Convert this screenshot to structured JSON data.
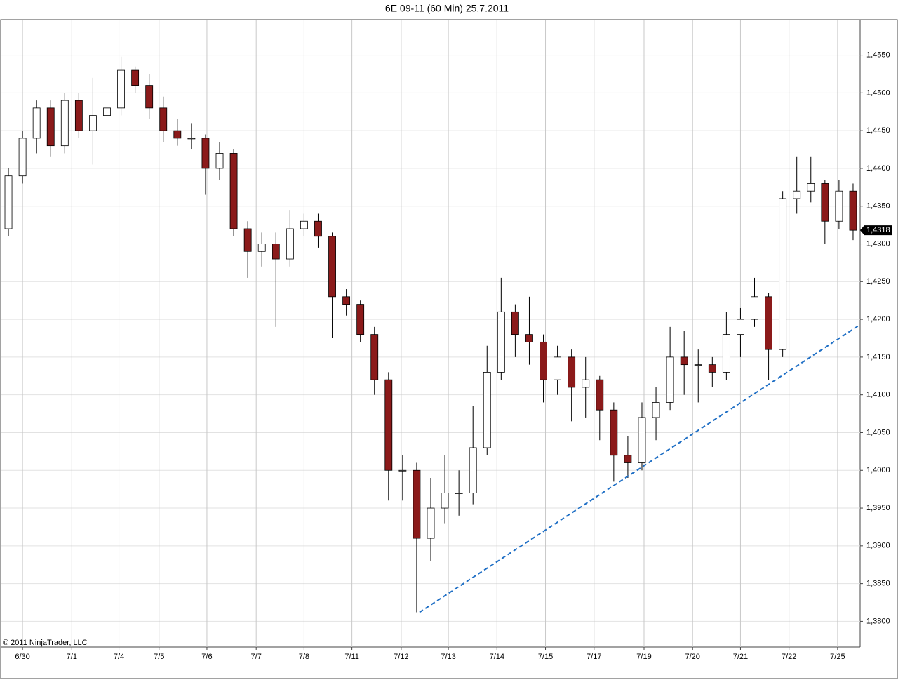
{
  "chart_data": {
    "type": "candlestick",
    "title": "6E 09-11 (60 Min)  25.7.2011",
    "copyright": "© 2011 NinjaTrader, LLC",
    "xlim": [
      0,
      122
    ],
    "xticks": [
      {
        "value": 3,
        "label": "6/30"
      },
      {
        "value": 10,
        "label": "7/1"
      },
      {
        "value": 16.7,
        "label": "7/4"
      },
      {
        "value": 22.4,
        "label": "7/5"
      },
      {
        "value": 29.2,
        "label": "7/6"
      },
      {
        "value": 36.2,
        "label": "7/7"
      },
      {
        "value": 43,
        "label": "7/8"
      },
      {
        "value": 49.8,
        "label": "7/11"
      },
      {
        "value": 56.8,
        "label": "7/12"
      },
      {
        "value": 63.5,
        "label": "7/13"
      },
      {
        "value": 70.4,
        "label": "7/14"
      },
      {
        "value": 77.3,
        "label": "7/15"
      },
      {
        "value": 84.2,
        "label": "7/17"
      },
      {
        "value": 91.3,
        "label": "7/19"
      },
      {
        "value": 98.2,
        "label": "7/20"
      },
      {
        "value": 105,
        "label": "7/21"
      },
      {
        "value": 111.9,
        "label": "7/22"
      },
      {
        "value": 118.8,
        "label": "7/25"
      }
    ],
    "ylim": [
      1.3766,
      1.4597
    ],
    "yticks": [
      {
        "value": 1.38,
        "label": "1,3800"
      },
      {
        "value": 1.385,
        "label": "1,3850"
      },
      {
        "value": 1.39,
        "label": "1,3900"
      },
      {
        "value": 1.395,
        "label": "1,3950"
      },
      {
        "value": 1.4,
        "label": "1,4000"
      },
      {
        "value": 1.405,
        "label": "1,4050"
      },
      {
        "value": 1.41,
        "label": "1,4100"
      },
      {
        "value": 1.415,
        "label": "1,4150"
      },
      {
        "value": 1.42,
        "label": "1,4200"
      },
      {
        "value": 1.425,
        "label": "1,4250"
      },
      {
        "value": 1.43,
        "label": "1,4300"
      },
      {
        "value": 1.435,
        "label": "1,4350"
      },
      {
        "value": 1.44,
        "label": "1,4400"
      },
      {
        "value": 1.445,
        "label": "1,4450"
      },
      {
        "value": 1.45,
        "label": "1,4500"
      },
      {
        "value": 1.455,
        "label": "1,4550"
      }
    ],
    "grid": true,
    "up_color": "#ffffff",
    "down_color": "#8b1a1a",
    "x": [
      1,
      3,
      5,
      7,
      9,
      11,
      13,
      15,
      17,
      19,
      21,
      23,
      25,
      27,
      29,
      31,
      33,
      35,
      37,
      39,
      41,
      43,
      45,
      47,
      49,
      51,
      53,
      55,
      57,
      59,
      61,
      63,
      65,
      67,
      69,
      71,
      73,
      75,
      77,
      79,
      81,
      83,
      85,
      87,
      89,
      91,
      93,
      95,
      97,
      99,
      101,
      103,
      105,
      107,
      109,
      111,
      113,
      115,
      117,
      119,
      121
    ],
    "open": [
      1.432,
      1.439,
      1.444,
      1.448,
      1.443,
      1.449,
      1.445,
      1.447,
      1.448,
      1.453,
      1.451,
      1.448,
      1.445,
      1.444,
      1.444,
      1.44,
      1.442,
      1.432,
      1.429,
      1.43,
      1.428,
      1.432,
      1.433,
      1.431,
      1.423,
      1.422,
      1.418,
      1.412,
      1.4,
      1.4,
      1.391,
      1.395,
      1.397,
      1.397,
      1.403,
      1.413,
      1.421,
      1.418,
      1.417,
      1.412,
      1.415,
      1.411,
      1.412,
      1.408,
      1.402,
      1.401,
      1.407,
      1.409,
      1.415,
      1.414,
      1.414,
      1.413,
      1.418,
      1.42,
      1.423,
      1.416,
      1.436,
      1.437,
      1.438,
      1.433,
      1.437
    ],
    "high": [
      1.44,
      1.445,
      1.449,
      1.449,
      1.45,
      1.45,
      1.452,
      1.45,
      1.4548,
      1.4535,
      1.4525,
      1.4495,
      1.4465,
      1.446,
      1.4445,
      1.4435,
      1.4425,
      1.433,
      1.4315,
      1.4315,
      1.4345,
      1.434,
      1.434,
      1.4315,
      1.424,
      1.4225,
      1.419,
      1.413,
      1.402,
      1.401,
      1.399,
      1.402,
      1.4,
      1.4085,
      1.4165,
      1.4255,
      1.422,
      1.423,
      1.418,
      1.4165,
      1.416,
      1.415,
      1.4125,
      1.409,
      1.4045,
      1.409,
      1.411,
      1.419,
      1.4185,
      1.416,
      1.415,
      1.421,
      1.4215,
      1.4255,
      1.4235,
      1.437,
      1.4415,
      1.4415,
      1.4385,
      1.4385,
      1.438
    ],
    "low": [
      1.431,
      1.438,
      1.442,
      1.4415,
      1.442,
      1.444,
      1.4405,
      1.446,
      1.447,
      1.45,
      1.4465,
      1.4435,
      1.443,
      1.4425,
      1.4365,
      1.4385,
      1.431,
      1.4255,
      1.427,
      1.419,
      1.427,
      1.431,
      1.4295,
      1.4175,
      1.4205,
      1.417,
      1.41,
      1.396,
      1.396,
      1.3812,
      1.388,
      1.393,
      1.394,
      1.3955,
      1.402,
      1.412,
      1.415,
      1.414,
      1.409,
      1.41,
      1.4065,
      1.407,
      1.404,
      1.3985,
      1.399,
      1.4,
      1.404,
      1.408,
      1.41,
      1.409,
      1.411,
      1.412,
      1.415,
      1.419,
      1.412,
      1.415,
      1.434,
      1.4355,
      1.43,
      1.432,
      1.4305
    ],
    "close": [
      1.439,
      1.444,
      1.448,
      1.443,
      1.449,
      1.445,
      1.447,
      1.448,
      1.453,
      1.451,
      1.448,
      1.445,
      1.444,
      1.444,
      1.44,
      1.442,
      1.432,
      1.429,
      1.43,
      1.428,
      1.432,
      1.433,
      1.431,
      1.423,
      1.422,
      1.418,
      1.412,
      1.4,
      1.4,
      1.391,
      1.395,
      1.397,
      1.397,
      1.403,
      1.413,
      1.421,
      1.418,
      1.417,
      1.412,
      1.415,
      1.411,
      1.412,
      1.408,
      1.402,
      1.401,
      1.407,
      1.409,
      1.415,
      1.414,
      1.414,
      1.413,
      1.418,
      1.42,
      1.423,
      1.416,
      1.436,
      1.437,
      1.438,
      1.433,
      1.437,
      1.4318
    ],
    "last_price": {
      "value": 1.4318,
      "label": "1,4318"
    },
    "trendline": {
      "x": [
        59.4,
        122
      ],
      "y": [
        1.3812,
        1.4193
      ],
      "color": "#1f6fc5"
    }
  }
}
